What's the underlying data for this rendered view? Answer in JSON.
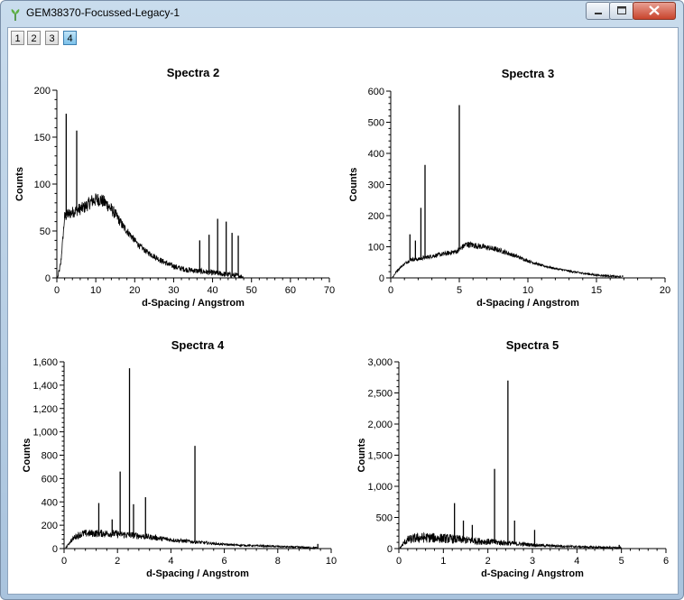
{
  "window": {
    "title": "GEM38370-Focussed-Legacy-1",
    "tabs": [
      "1",
      "2",
      "3",
      "4"
    ],
    "active_tab": "4"
  },
  "chart_data": [
    {
      "type": "line",
      "title": "Spectra 2",
      "xlabel": "d-Spacing / Angstrom",
      "ylabel": "Counts",
      "xlim": [
        0,
        70
      ],
      "ylim": [
        0,
        200
      ],
      "xticks": [
        "0",
        "10",
        "20",
        "30",
        "40",
        "50",
        "60",
        "70"
      ],
      "yticks": [
        "0",
        "50",
        "100",
        "150",
        "200"
      ],
      "series": [
        {
          "x": [
            0.2,
            1,
            2,
            3,
            5,
            7,
            9,
            11,
            13,
            15,
            17,
            19,
            21,
            23,
            25,
            27,
            29,
            31,
            33,
            35,
            37,
            39,
            41,
            43,
            45,
            47,
            48,
            50,
            55,
            60
          ],
          "y": [
            0,
            15,
            65,
            68,
            72,
            75,
            82,
            84,
            78,
            68,
            55,
            45,
            35,
            28,
            23,
            18,
            14,
            11,
            9,
            8,
            7,
            6,
            5,
            4,
            3,
            2,
            0,
            0,
            0,
            0
          ],
          "peaks": [
            [
              2.4,
              175
            ],
            [
              5.1,
              157
            ],
            [
              36.7,
              40
            ],
            [
              39.1,
              46
            ],
            [
              41.3,
              63
            ],
            [
              43.5,
              60
            ],
            [
              45.0,
              48
            ],
            [
              46.6,
              45
            ]
          ]
        }
      ]
    },
    {
      "type": "line",
      "title": "Spectra 3",
      "xlabel": "d-Spacing / Angstrom",
      "ylabel": "Counts",
      "xlim": [
        0,
        20
      ],
      "ylim": [
        0,
        600
      ],
      "xticks": [
        "0",
        "5",
        "10",
        "15",
        "20"
      ],
      "yticks": [
        "0",
        "100",
        "200",
        "300",
        "400",
        "500",
        "600"
      ],
      "series": [
        {
          "x": [
            0.1,
            0.5,
            1,
            1.5,
            2,
            2.5,
            3,
            4,
            4.8,
            5.5,
            6,
            7,
            8,
            9,
            10,
            11,
            12,
            13,
            14,
            15,
            16,
            16.8
          ],
          "y": [
            0,
            25,
            45,
            60,
            60,
            65,
            70,
            78,
            85,
            108,
            105,
            98,
            88,
            72,
            55,
            40,
            30,
            22,
            15,
            9,
            6,
            3
          ],
          "peaks": [
            [
              1.4,
              140
            ],
            [
              1.8,
              120
            ],
            [
              2.2,
              225
            ],
            [
              2.5,
              363
            ],
            [
              5.0,
              555
            ],
            [
              16.9,
              8
            ]
          ]
        }
      ]
    },
    {
      "type": "line",
      "title": "Spectra 4",
      "xlabel": "d-Spacing / Angstrom",
      "ylabel": "Counts",
      "xlim": [
        0,
        10
      ],
      "ylim": [
        0,
        1600
      ],
      "xticks": [
        "0",
        "2",
        "4",
        "6",
        "8",
        "10"
      ],
      "yticks": [
        "0",
        "200",
        "400",
        "600",
        "800",
        "1,000",
        "1,200",
        "1,400",
        "1,600"
      ],
      "series": [
        {
          "x": [
            0.05,
            0.2,
            0.4,
            0.6,
            0.8,
            1.0,
            1.5,
            2.0,
            2.5,
            3.0,
            3.5,
            4.0,
            4.5,
            5.0,
            5.5,
            6.0,
            7.0,
            8.0,
            9.0,
            9.5
          ],
          "y": [
            0,
            50,
            100,
            120,
            130,
            130,
            130,
            125,
            115,
            105,
            90,
            75,
            65,
            55,
            45,
            35,
            25,
            18,
            10,
            5
          ],
          "peaks": [
            [
              1.3,
              390
            ],
            [
              1.8,
              250
            ],
            [
              2.1,
              660
            ],
            [
              2.45,
              1545
            ],
            [
              2.6,
              380
            ],
            [
              3.05,
              440
            ],
            [
              4.9,
              880
            ],
            [
              9.5,
              40
            ]
          ]
        }
      ]
    },
    {
      "type": "line",
      "title": "Spectra 5",
      "xlabel": "d-Spacing / Angstrom",
      "ylabel": "Counts",
      "xlim": [
        0,
        6
      ],
      "ylim": [
        0,
        3000
      ],
      "xticks": [
        "0",
        "1",
        "2",
        "3",
        "4",
        "5",
        "6"
      ],
      "yticks": [
        "0",
        "500",
        "1,000",
        "1,500",
        "2,000",
        "2,500",
        "3,000"
      ],
      "series": [
        {
          "x": [
            0.02,
            0.1,
            0.2,
            0.4,
            0.6,
            0.8,
            1.0,
            1.3,
            1.6,
            2.0,
            2.4,
            2.8,
            3.2,
            3.6,
            4.0,
            4.5,
            5.0
          ],
          "y": [
            0,
            80,
            140,
            170,
            175,
            170,
            165,
            150,
            130,
            110,
            90,
            70,
            50,
            40,
            30,
            20,
            10
          ],
          "peaks": [
            [
              1.25,
              730
            ],
            [
              1.45,
              450
            ],
            [
              1.65,
              380
            ],
            [
              2.15,
              1280
            ],
            [
              2.45,
              2700
            ],
            [
              2.6,
              450
            ],
            [
              3.05,
              300
            ],
            [
              4.95,
              60
            ]
          ]
        }
      ]
    }
  ]
}
